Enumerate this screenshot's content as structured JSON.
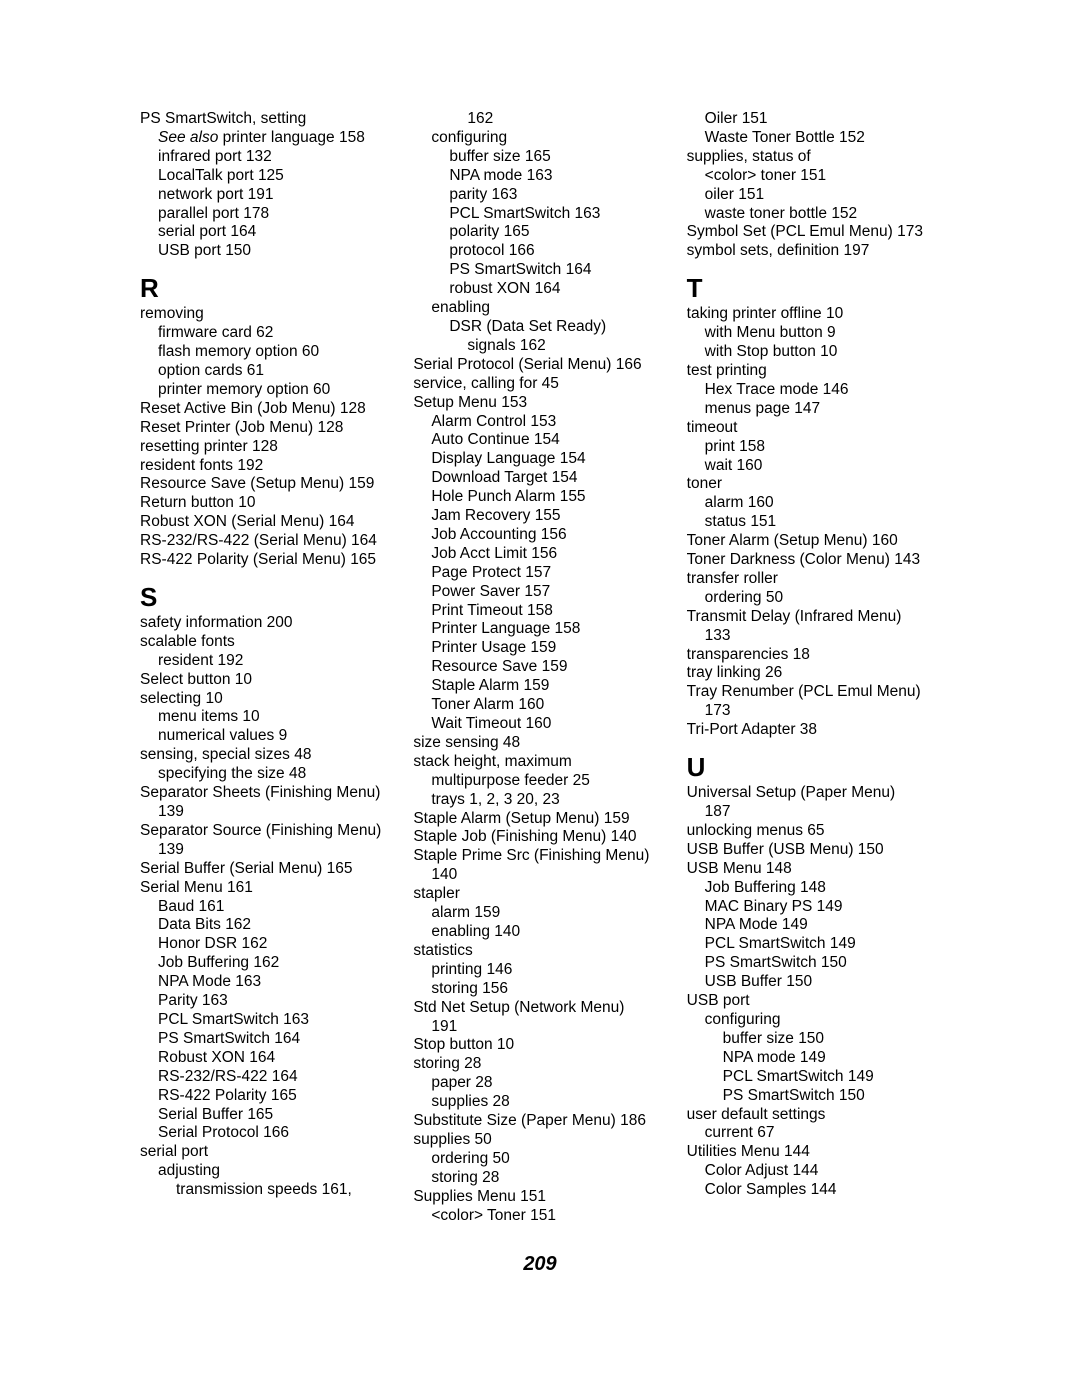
{
  "page_number": "209",
  "columns": [
    [
      {
        "t": "PS SmartSwitch, setting",
        "i": 0
      },
      {
        "t": "See also printer language  158",
        "i": 1,
        "italic_prefix": "See also"
      },
      {
        "t": "infrared port  132",
        "i": 1
      },
      {
        "t": "LocalTalk port  125",
        "i": 1
      },
      {
        "t": "network port  191",
        "i": 1
      },
      {
        "t": "parallel port  178",
        "i": 1
      },
      {
        "t": "serial port  164",
        "i": 1
      },
      {
        "t": "USB port  150",
        "i": 1
      },
      {
        "letter": "R"
      },
      {
        "t": "removing",
        "i": 0
      },
      {
        "t": "firmware card  62",
        "i": 1
      },
      {
        "t": "flash memory option  60",
        "i": 1
      },
      {
        "t": "option cards  61",
        "i": 1
      },
      {
        "t": "printer memory option  60",
        "i": 1
      },
      {
        "t": "Reset Active Bin (Job Menu)  128",
        "i": 0
      },
      {
        "t": "Reset Printer (Job Menu)  128",
        "i": 0
      },
      {
        "t": "resetting printer  128",
        "i": 0
      },
      {
        "t": "resident fonts  192",
        "i": 0
      },
      {
        "t": "Resource Save (Setup Menu)  159",
        "i": 0
      },
      {
        "t": "Return button  10",
        "i": 0
      },
      {
        "t": "Robust XON (Serial Menu)  164",
        "i": 0
      },
      {
        "t": "RS-232/RS-422 (Serial Menu)  164",
        "i": 0
      },
      {
        "t": "RS-422 Polarity (Serial Menu)  165",
        "i": 0
      },
      {
        "letter": "S"
      },
      {
        "t": "safety information  200",
        "i": 0
      },
      {
        "t": "scalable fonts",
        "i": 0
      },
      {
        "t": "resident  192",
        "i": 1
      },
      {
        "t": "Select button  10",
        "i": 0
      },
      {
        "t": "selecting  10",
        "i": 0
      },
      {
        "t": "menu items  10",
        "i": 1
      },
      {
        "t": "numerical values  9",
        "i": 1
      },
      {
        "t": "sensing, special sizes  48",
        "i": 0
      },
      {
        "t": "specifying the size  48",
        "i": 1
      },
      {
        "t": "Separator Sheets (Finishing Menu)",
        "i": 0
      },
      {
        "t": "139",
        "i": 1
      },
      {
        "t": "Separator Source (Finishing Menu)",
        "i": 0
      },
      {
        "t": "139",
        "i": 1
      },
      {
        "t": "Serial Buffer (Serial Menu)  165",
        "i": 0
      },
      {
        "t": "Serial Menu  161",
        "i": 0
      },
      {
        "t": "Baud  161",
        "i": 1
      },
      {
        "t": "Data Bits  162",
        "i": 1
      },
      {
        "t": "Honor DSR  162",
        "i": 1
      },
      {
        "t": "Job Buffering  162",
        "i": 1
      },
      {
        "t": "NPA Mode  163",
        "i": 1
      },
      {
        "t": "Parity  163",
        "i": 1
      },
      {
        "t": "PCL SmartSwitch  163",
        "i": 1
      },
      {
        "t": "PS SmartSwitch  164",
        "i": 1
      },
      {
        "t": "Robust XON  164",
        "i": 1
      },
      {
        "t": "RS-232/RS-422  164",
        "i": 1
      },
      {
        "t": "RS-422 Polarity  165",
        "i": 1
      },
      {
        "t": "Serial Buffer  165",
        "i": 1
      },
      {
        "t": "Serial Protocol  166",
        "i": 1
      },
      {
        "t": "serial port",
        "i": 0
      },
      {
        "t": "adjusting",
        "i": 1
      },
      {
        "t": "transmission speeds  161,",
        "i": 2
      }
    ],
    [
      {
        "t": "162",
        "i": 3
      },
      {
        "t": "configuring",
        "i": 1
      },
      {
        "t": "buffer size  165",
        "i": 2
      },
      {
        "t": "NPA mode  163",
        "i": 2
      },
      {
        "t": "parity  163",
        "i": 2
      },
      {
        "t": "PCL SmartSwitch  163",
        "i": 2
      },
      {
        "t": "polarity  165",
        "i": 2
      },
      {
        "t": "protocol  166",
        "i": 2
      },
      {
        "t": "PS SmartSwitch  164",
        "i": 2
      },
      {
        "t": "robust XON  164",
        "i": 2
      },
      {
        "t": "enabling",
        "i": 1
      },
      {
        "t": "DSR (Data Set Ready)",
        "i": 2
      },
      {
        "t": "signals  162",
        "i": 3
      },
      {
        "t": "Serial Protocol (Serial Menu)  166",
        "i": 0
      },
      {
        "t": "service, calling for  45",
        "i": 0
      },
      {
        "t": "Setup Menu  153",
        "i": 0
      },
      {
        "t": "Alarm Control  153",
        "i": 1
      },
      {
        "t": "Auto Continue  154",
        "i": 1
      },
      {
        "t": "Display Language  154",
        "i": 1
      },
      {
        "t": "Download Target  154",
        "i": 1
      },
      {
        "t": "Hole Punch Alarm  155",
        "i": 1
      },
      {
        "t": "Jam Recovery  155",
        "i": 1
      },
      {
        "t": "Job Accounting  156",
        "i": 1
      },
      {
        "t": "Job Acct Limit  156",
        "i": 1
      },
      {
        "t": "Page Protect  157",
        "i": 1
      },
      {
        "t": "Power Saver  157",
        "i": 1
      },
      {
        "t": "Print Timeout  158",
        "i": 1
      },
      {
        "t": "Printer Language  158",
        "i": 1
      },
      {
        "t": "Printer Usage  159",
        "i": 1
      },
      {
        "t": "Resource Save  159",
        "i": 1
      },
      {
        "t": "Staple Alarm  159",
        "i": 1
      },
      {
        "t": "Toner Alarm  160",
        "i": 1
      },
      {
        "t": "Wait Timeout  160",
        "i": 1
      },
      {
        "t": "size sensing  48",
        "i": 0
      },
      {
        "t": "stack height, maximum",
        "i": 0
      },
      {
        "t": "multipurpose feeder  25",
        "i": 1
      },
      {
        "t": "trays 1, 2, 3  20, 23",
        "i": 1
      },
      {
        "t": "Staple Alarm (Setup Menu)  159",
        "i": 0
      },
      {
        "t": "Staple Job (Finishing Menu)  140",
        "i": 0
      },
      {
        "t": "Staple Prime Src (Finishing Menu)",
        "i": 0
      },
      {
        "t": "140",
        "i": 1
      },
      {
        "t": "stapler",
        "i": 0
      },
      {
        "t": "alarm  159",
        "i": 1
      },
      {
        "t": "enabling  140",
        "i": 1
      },
      {
        "t": "statistics",
        "i": 0
      },
      {
        "t": "printing  146",
        "i": 1
      },
      {
        "t": "storing  156",
        "i": 1
      },
      {
        "t": "Std Net Setup (Network Menu)",
        "i": 0
      },
      {
        "t": "191",
        "i": 1
      },
      {
        "t": "Stop button  10",
        "i": 0
      },
      {
        "t": "storing  28",
        "i": 0
      },
      {
        "t": "paper  28",
        "i": 1
      },
      {
        "t": "supplies  28",
        "i": 1
      },
      {
        "t": "Substitute Size (Paper Menu)  186",
        "i": 0
      },
      {
        "t": "supplies  50",
        "i": 0
      },
      {
        "t": "ordering  50",
        "i": 1
      },
      {
        "t": "storing  28",
        "i": 1
      },
      {
        "t": "Supplies Menu  151",
        "i": 0
      },
      {
        "t": "<color> Toner  151",
        "i": 1
      }
    ],
    [
      {
        "t": "Oiler  151",
        "i": 1
      },
      {
        "t": "Waste Toner Bottle  152",
        "i": 1
      },
      {
        "t": "supplies, status of",
        "i": 0
      },
      {
        "t": "<color> toner  151",
        "i": 1
      },
      {
        "t": "oiler  151",
        "i": 1
      },
      {
        "t": "waste toner bottle  152",
        "i": 1
      },
      {
        "t": "Symbol Set (PCL Emul Menu)  173",
        "i": 0
      },
      {
        "t": "symbol sets, definition  197",
        "i": 0
      },
      {
        "letter": "T"
      },
      {
        "t": "taking printer offline  10",
        "i": 0
      },
      {
        "t": "with Menu button  9",
        "i": 1
      },
      {
        "t": "with Stop button  10",
        "i": 1
      },
      {
        "t": "test printing",
        "i": 0
      },
      {
        "t": "Hex Trace mode  146",
        "i": 1
      },
      {
        "t": "menus page  147",
        "i": 1
      },
      {
        "t": "timeout",
        "i": 0
      },
      {
        "t": "print  158",
        "i": 1
      },
      {
        "t": "wait  160",
        "i": 1
      },
      {
        "t": "toner",
        "i": 0
      },
      {
        "t": "alarm  160",
        "i": 1
      },
      {
        "t": "status  151",
        "i": 1
      },
      {
        "t": "Toner Alarm (Setup Menu)  160",
        "i": 0
      },
      {
        "t": "Toner Darkness (Color Menu)  143",
        "i": 0
      },
      {
        "t": "transfer roller",
        "i": 0
      },
      {
        "t": "ordering  50",
        "i": 1
      },
      {
        "t": "Transmit Delay (Infrared Menu)",
        "i": 0
      },
      {
        "t": "133",
        "i": 1
      },
      {
        "t": "transparencies  18",
        "i": 0
      },
      {
        "t": "tray linking  26",
        "i": 0
      },
      {
        "t": "Tray Renumber (PCL Emul Menu)",
        "i": 0
      },
      {
        "t": "173",
        "i": 1
      },
      {
        "t": "Tri-Port Adapter  38",
        "i": 0
      },
      {
        "letter": "U"
      },
      {
        "t": "Universal Setup (Paper Menu)",
        "i": 0
      },
      {
        "t": "187",
        "i": 1
      },
      {
        "t": "unlocking menus  65",
        "i": 0
      },
      {
        "t": "USB Buffer (USB Menu)  150",
        "i": 0
      },
      {
        "t": "USB Menu  148",
        "i": 0
      },
      {
        "t": "Job Buffering  148",
        "i": 1
      },
      {
        "t": "MAC Binary PS  149",
        "i": 1
      },
      {
        "t": "NPA Mode  149",
        "i": 1
      },
      {
        "t": "PCL SmartSwitch  149",
        "i": 1
      },
      {
        "t": "PS SmartSwitch  150",
        "i": 1
      },
      {
        "t": "USB Buffer  150",
        "i": 1
      },
      {
        "t": "USB port",
        "i": 0
      },
      {
        "t": "configuring",
        "i": 1
      },
      {
        "t": "buffer size  150",
        "i": 2
      },
      {
        "t": "NPA mode  149",
        "i": 2
      },
      {
        "t": "PCL SmartSwitch  149",
        "i": 2
      },
      {
        "t": "PS SmartSwitch  150",
        "i": 2
      },
      {
        "t": "user default settings",
        "i": 0
      },
      {
        "t": "current  67",
        "i": 1
      },
      {
        "t": "Utilities Menu  144",
        "i": 0
      },
      {
        "t": "Color Adjust  144",
        "i": 1
      },
      {
        "t": "Color Samples  144",
        "i": 1
      }
    ]
  ]
}
